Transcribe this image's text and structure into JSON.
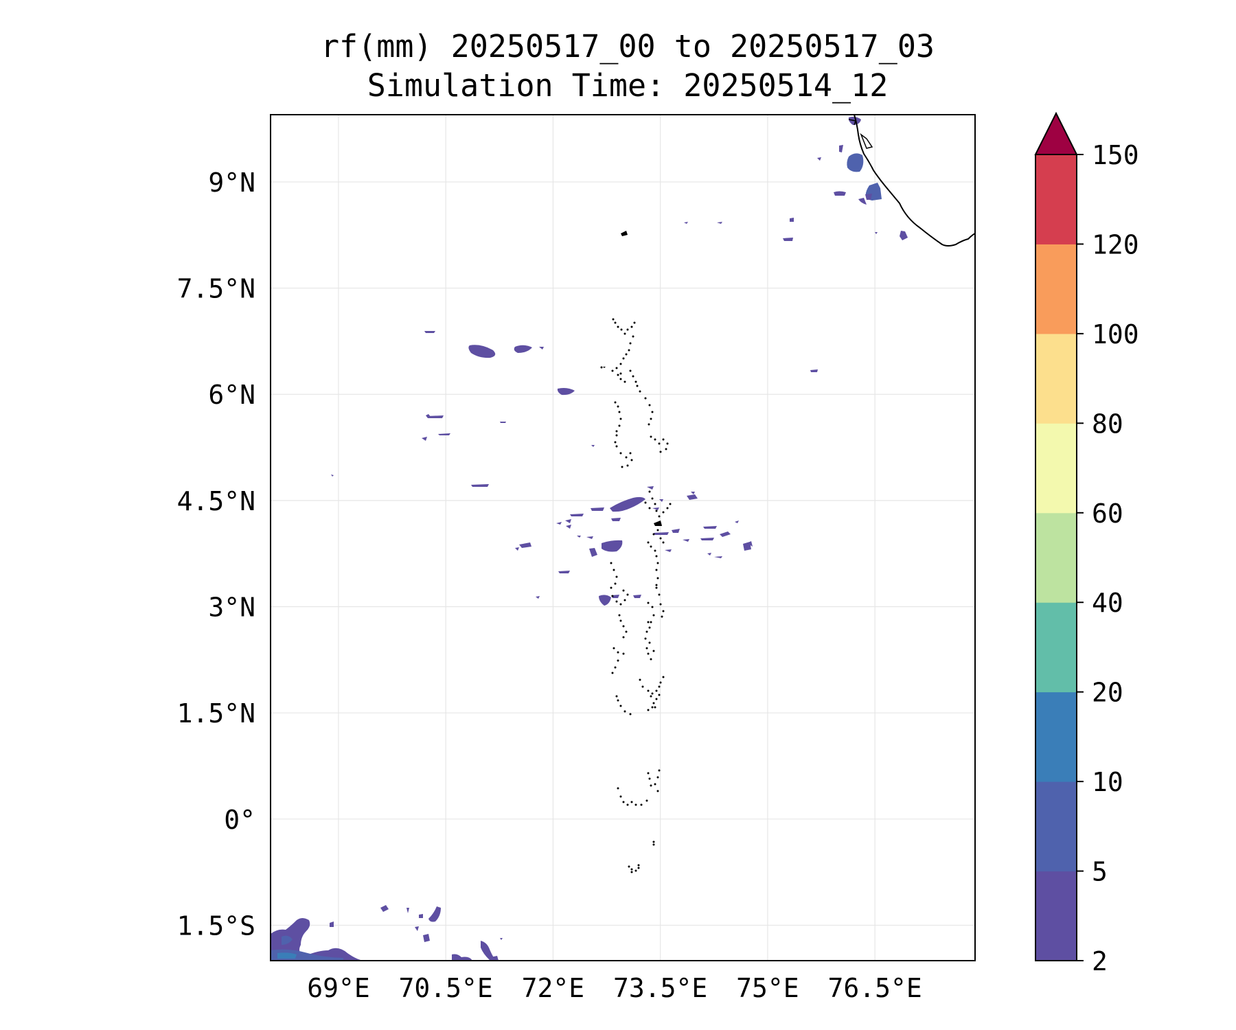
{
  "title": "rf(mm) 20250517_00 to 20250517_03",
  "subtitle": "Simulation Time: 20250514_12",
  "map": {
    "lon_range": [
      68.05,
      77.9
    ],
    "lat_range": [
      -2.0,
      9.95
    ],
    "lon_ticks": [
      {
        "value": 69.0,
        "label": "69°E"
      },
      {
        "value": 70.5,
        "label": "70.5°E"
      },
      {
        "value": 72.0,
        "label": "72°E"
      },
      {
        "value": 73.5,
        "label": "73.5°E"
      },
      {
        "value": 75.0,
        "label": "75°E"
      },
      {
        "value": 76.5,
        "label": "76.5°E"
      }
    ],
    "lat_ticks": [
      {
        "value": 9.0,
        "label": "9°N"
      },
      {
        "value": 7.5,
        "label": "7.5°N"
      },
      {
        "value": 6.0,
        "label": "6°N"
      },
      {
        "value": 4.5,
        "label": "4.5°N"
      },
      {
        "value": 3.0,
        "label": "3°N"
      },
      {
        "value": 1.5,
        "label": "1.5°N"
      },
      {
        "value": 0.0,
        "label": "0°"
      },
      {
        "value": -1.5,
        "label": "1.5°S"
      }
    ],
    "grid": true
  },
  "colorbar": {
    "levels": [
      "2",
      "5",
      "10",
      "20",
      "40",
      "60",
      "80",
      "100",
      "120",
      "150"
    ],
    "colors": [
      "#5e4fa2",
      "#4f62ad",
      "#3a7eb8",
      "#62bea9",
      "#bde3a0",
      "#f3f9ae",
      "#fcdf8d",
      "#f99c5b",
      "#d53e4f"
    ],
    "extend_color": "#9e0142",
    "extend": "max"
  },
  "colors": {
    "rain_light": "#5e4fa2",
    "rain_mid": "#4f62ad",
    "rain_heavy": "#3a7eb8"
  }
}
